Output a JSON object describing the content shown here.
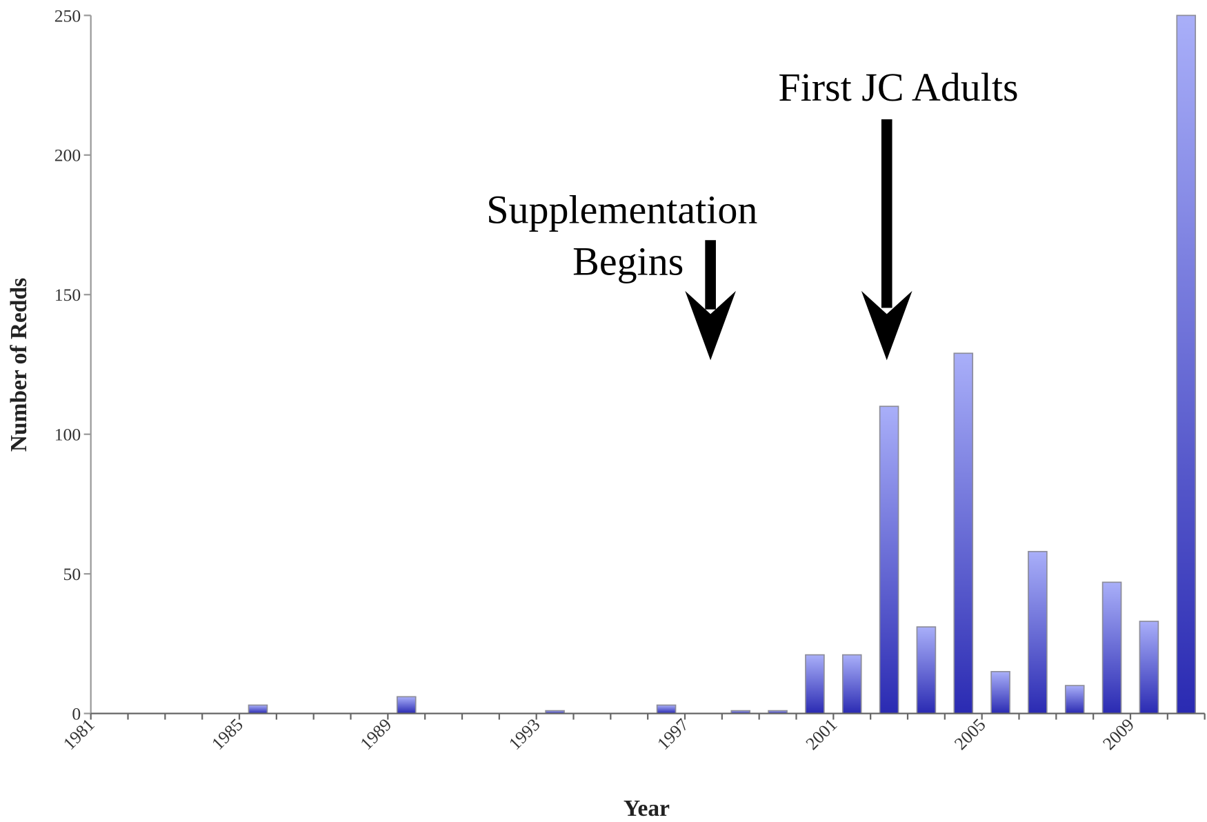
{
  "chart_data": {
    "type": "bar",
    "x_label": "Year",
    "y_label": "Number of Redds",
    "categories": [
      "1981",
      null,
      null,
      null,
      "1985",
      null,
      null,
      null,
      "1989",
      null,
      null,
      null,
      "1993",
      null,
      null,
      null,
      "1997",
      null,
      null,
      null,
      "2001",
      null,
      null,
      null,
      "2005",
      null,
      null,
      null,
      "2009",
      null
    ],
    "values": [
      0,
      0,
      0,
      0,
      3,
      0,
      0,
      0,
      6,
      0,
      0,
      0,
      1,
      0,
      0,
      3,
      0,
      1,
      1,
      21,
      21,
      110,
      31,
      129,
      15,
      58,
      10,
      47,
      33,
      250
    ],
    "ylim": [
      0,
      250
    ],
    "yticks": [
      0,
      50,
      100,
      150,
      200,
      250
    ],
    "color": "#2a2ab2",
    "color_top": "#a9aff9",
    "annotations": [
      {
        "lines": [
          "Supplementation",
          "Begins"
        ]
      },
      {
        "lines": [
          "First JC Adults"
        ]
      }
    ]
  }
}
